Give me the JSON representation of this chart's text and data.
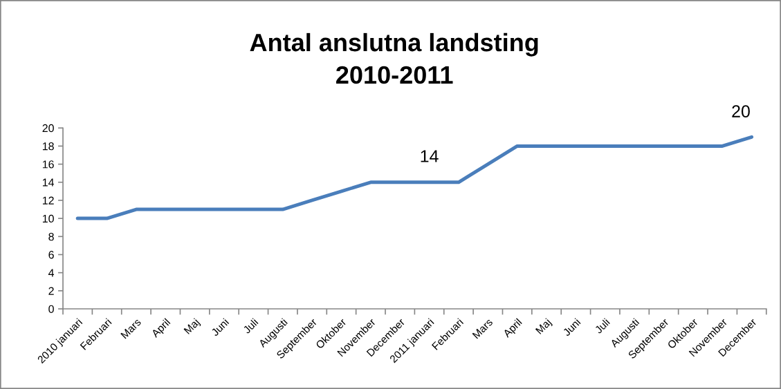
{
  "chart_data": {
    "type": "line",
    "title": "Antal anslutna landsting\n2010-2011",
    "categories": [
      "2010 januari",
      "Februari",
      "Mars",
      "April",
      "Maj",
      "Juni",
      "Juli",
      "Augusti",
      "September",
      "Oktober",
      "November",
      "December",
      "2011 januari",
      "Februari",
      "Mars",
      "April",
      "Maj",
      "Juni",
      "Juli",
      "Augusti",
      "September",
      "Oktober",
      "November",
      "December"
    ],
    "series": [
      {
        "color": "#4a7ebb",
        "values": [
          10,
          10,
          11,
          11,
          11,
          11,
          11,
          11,
          12,
          13,
          14,
          14,
          14,
          14,
          16,
          18,
          18,
          18,
          18,
          18,
          18,
          18,
          18,
          19
        ]
      }
    ],
    "ylim": [
      0,
      20
    ],
    "yticks": [
      0,
      2,
      4,
      6,
      8,
      10,
      12,
      14,
      16,
      18,
      20
    ],
    "marker": "none",
    "line_style": "solid",
    "annotations": [
      {
        "text": "14",
        "x": "2011 januari",
        "y": 14
      },
      "20"
    ]
  }
}
